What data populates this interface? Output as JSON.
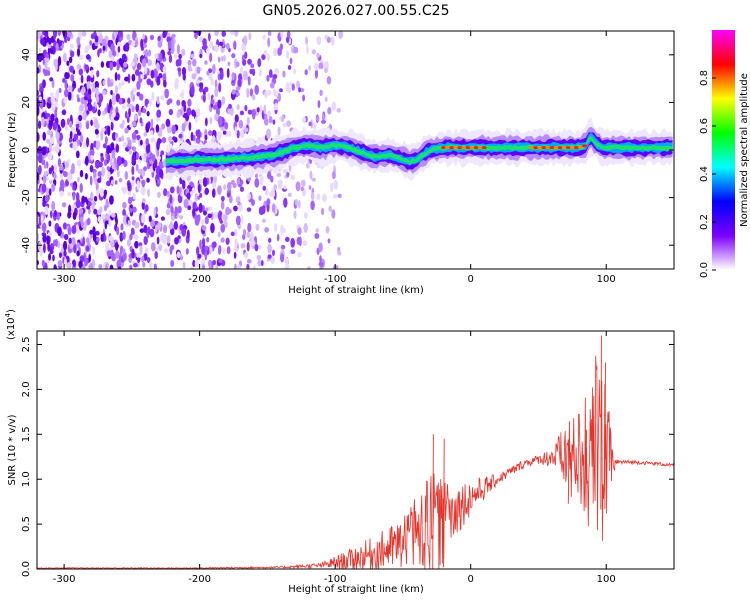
{
  "title": "GN05.2026.027.00.55.C25",
  "chart_data": [
    {
      "type": "heatmap",
      "name": "spectrogram",
      "xlabel": "Height of straight line (km)",
      "ylabel": "Frequency (Hz)",
      "xlim": [
        -320,
        150
      ],
      "ylim": [
        -50,
        50
      ],
      "xticks": [
        -300,
        -200,
        -100,
        0,
        100
      ],
      "yticks": [
        -40,
        -20,
        0,
        20,
        40
      ],
      "xtick_labels": [
        "-300",
        "-200",
        "-100",
        "0",
        "100"
      ],
      "ytick_labels": [
        "-40",
        "-20",
        "0",
        "20",
        "40"
      ],
      "noise_region_x": [
        -320,
        -95
      ],
      "ridge": {
        "x": [
          -225,
          -200,
          -180,
          -160,
          -145,
          -140,
          -130,
          -120,
          -110,
          -100,
          -90,
          -80,
          -70,
          -60,
          -50,
          -45,
          -40,
          -35,
          -30,
          -20,
          -10,
          0,
          20,
          40,
          60,
          80,
          85,
          88,
          92,
          98,
          110,
          150
        ],
        "y": [
          -5,
          -4,
          -4,
          -3,
          -2,
          -1,
          1,
          2,
          1,
          2,
          1,
          -1,
          -3,
          -2,
          -4,
          -5,
          -4,
          -2,
          0,
          1,
          1,
          1,
          1,
          1,
          1,
          1,
          2,
          6,
          3,
          1,
          1,
          1
        ],
        "peak_segments": [
          [
            -20,
            10
          ],
          [
            45,
            85
          ]
        ]
      },
      "colorbar": {
        "label": "Normalized spectral amplitude",
        "range": [
          0,
          1
        ],
        "ticks": [
          0.0,
          0.2,
          0.4,
          0.6,
          0.8
        ],
        "tick_labels": [
          "0.0",
          "0.2",
          "0.4",
          "0.6",
          "0.8"
        ],
        "colors": [
          "#ffffff",
          "#7b00ff",
          "#0000ff",
          "#00ffff",
          "#00ff00",
          "#ffff00",
          "#ff0000",
          "#ff00ff"
        ]
      }
    },
    {
      "type": "line",
      "name": "snr",
      "xlabel": "Height of straight line (km)",
      "ylabel": "SNR (10 * v/v)",
      "scale_label": "(x10",
      "scale_exponent": "4",
      "scale_close": ")",
      "xlim": [
        -320,
        150
      ],
      "ylim": [
        0,
        2.65
      ],
      "xticks": [
        -300,
        -200,
        -100,
        0,
        100
      ],
      "yticks": [
        0.0,
        0.5,
        1.0,
        1.5,
        2.0,
        2.5
      ],
      "xtick_labels": [
        "-300",
        "-200",
        "-100",
        "0",
        "100"
      ],
      "ytick_labels": [
        "0.0",
        "0.5",
        "1.0",
        "1.5",
        "2.0",
        "2.5"
      ],
      "color": "#e8322a",
      "envelope": {
        "x": [
          -320,
          -200,
          -140,
          -110,
          -90,
          -70,
          -50,
          -40,
          -30,
          -20,
          -10,
          0,
          20,
          40,
          50,
          60,
          70,
          80,
          90,
          95,
          100,
          105,
          110,
          120,
          130,
          140,
          150
        ],
        "base": [
          0.01,
          0.01,
          0.02,
          0.04,
          0.1,
          0.18,
          0.28,
          0.35,
          0.42,
          0.52,
          0.68,
          0.8,
          1.0,
          1.18,
          1.22,
          1.25,
          1.23,
          1.21,
          1.18,
          1.16,
          1.17,
          1.18,
          1.19,
          1.19,
          1.18,
          1.17,
          1.15
        ],
        "spread": [
          0.005,
          0.006,
          0.01,
          0.03,
          0.12,
          0.2,
          0.3,
          0.45,
          0.7,
          0.45,
          0.3,
          0.2,
          0.06,
          0.05,
          0.05,
          0.12,
          0.4,
          0.6,
          0.9,
          1.3,
          0.9,
          0.1,
          0.03,
          0.02,
          0.02,
          0.02,
          0.02
        ]
      },
      "spikes": [
        {
          "x": -28,
          "y": 1.5
        },
        {
          "x": -20,
          "y": 1.45
        },
        {
          "x": 72,
          "y": 1.3
        },
        {
          "x": 85,
          "y": 1.55
        },
        {
          "x": 96,
          "y": 2.6
        },
        {
          "x": 99,
          "y": 2.3
        }
      ]
    }
  ]
}
